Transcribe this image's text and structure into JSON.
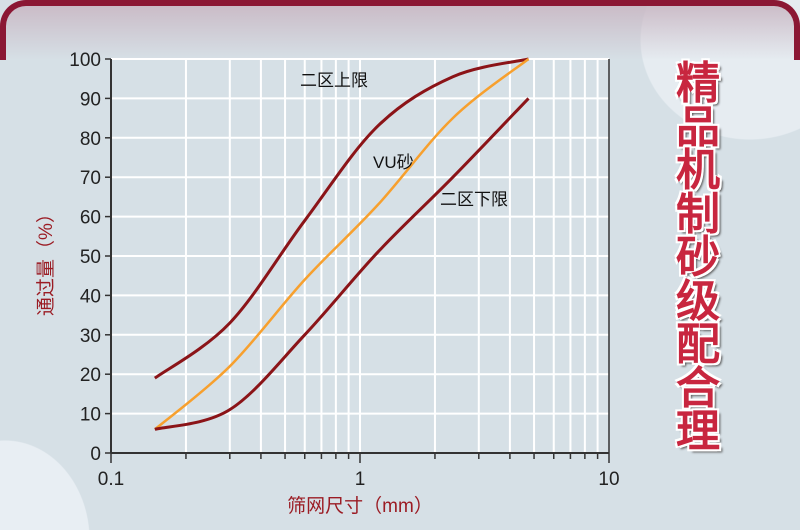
{
  "title": "精品机制砂级配合理",
  "colors": {
    "limit": "#8b1418",
    "vu": "#f7a02e",
    "title": "#c8263f",
    "frame": "#8b1734",
    "axis_label": "#9b1c24"
  },
  "chart_data": {
    "type": "line",
    "xlabel": "筛网尺寸（mm）",
    "ylabel": "通过量（%）",
    "x_scale": "log",
    "xlim": [
      0.1,
      10
    ],
    "ylim": [
      0,
      100
    ],
    "x_tick_labels": [
      "0.1",
      "1",
      "10"
    ],
    "y_tick_labels": [
      "0",
      "10",
      "20",
      "30",
      "40",
      "50",
      "60",
      "70",
      "80",
      "90",
      "100"
    ],
    "grid": true,
    "x": [
      0.15,
      0.3,
      0.6,
      1.18,
      2.36,
      4.75
    ],
    "series": [
      {
        "name": "二区上限",
        "values": [
          19,
          33,
          59,
          83,
          95.5,
          100
        ],
        "color": "#8b1418"
      },
      {
        "name": "VU砂",
        "values": [
          6,
          22,
          44,
          63,
          85,
          100
        ],
        "color": "#f7a02e"
      },
      {
        "name": "二区下限",
        "values": [
          6,
          11,
          30,
          51,
          70,
          90
        ],
        "color": "#8b1418"
      }
    ]
  }
}
